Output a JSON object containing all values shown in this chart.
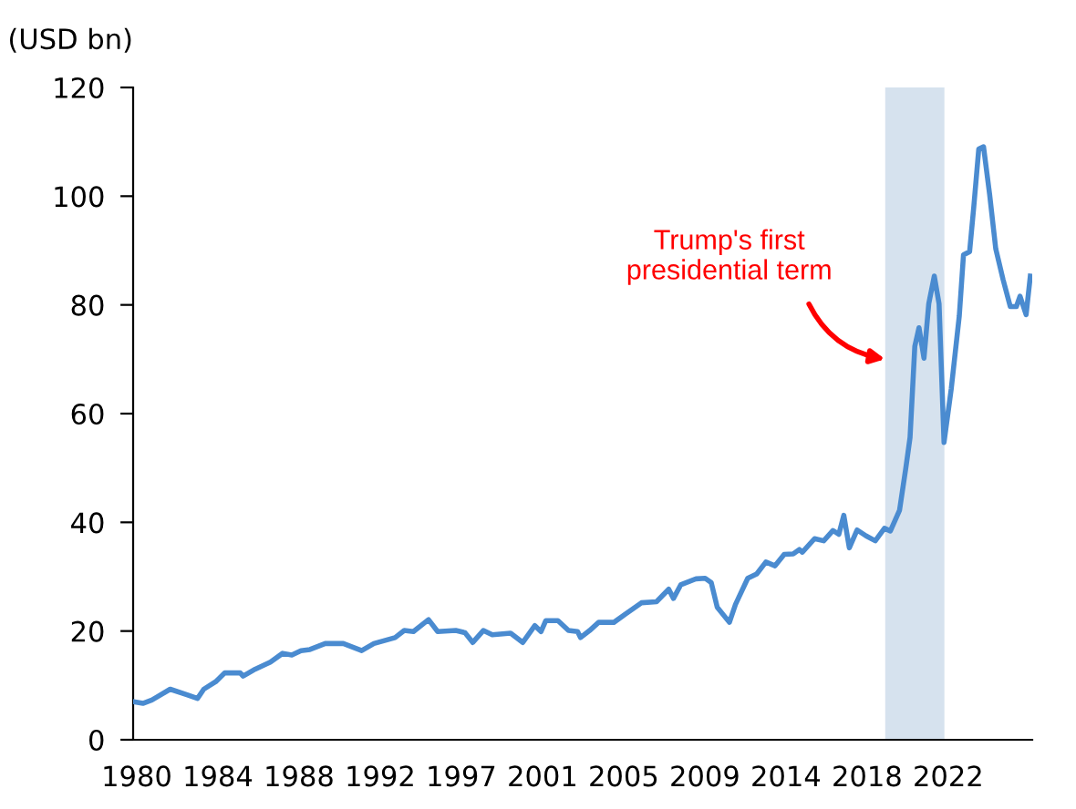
{
  "chart_data": {
    "type": "line",
    "ylabel": "(USD bn)",
    "x": [
      1979.54,
      1980.02,
      1980.49,
      1981.45,
      1982.4,
      1982.88,
      1983.21,
      1983.84,
      1984.31,
      1985.12,
      1985.27,
      1985.91,
      1986.7,
      1987.34,
      1987.82,
      1988.3,
      1988.77,
      1989.57,
      1990.52,
      1991.48,
      1992.12,
      1993.23,
      1993.71,
      1994.19,
      1994.98,
      1995.46,
      1996.41,
      1996.89,
      1997.3,
      1997.85,
      1998.32,
      1999.28,
      1999.92,
      2000.55,
      2000.87,
      2001.12,
      2001.76,
      2002.31,
      2002.79,
      2002.94,
      2003.42,
      2003.89,
      2004.69,
      2005.33,
      2006.13,
      2006.92,
      2007.56,
      2007.81,
      2008.19,
      2008.99,
      2009.47,
      2009.79,
      2010.1,
      2010.74,
      2011.06,
      2011.7,
      2012.17,
      2012.65,
      2013.13,
      2013.61,
      2014.08,
      2014.4,
      2014.56,
      2015.2,
      2015.68,
      2016.16,
      2016.47,
      2016.73,
      2017.02,
      2017.43,
      2017.9,
      2018.38,
      2018.86,
      2019.17,
      2019.65,
      2019.98,
      2020.2,
      2020.45,
      2020.67,
      2020.93,
      2021.18,
      2021.47,
      2021.72,
      2021.98,
      2022.36,
      2022.78,
      2023.0,
      2023.32,
      2023.54,
      2023.8,
      2024.05,
      2024.37,
      2024.69,
      2025.07,
      2025.45,
      2025.77,
      2025.96,
      2026.28,
      2026.5
    ],
    "series": [
      {
        "color": "#4a8bd0",
        "values": [
          7.0,
          6.7,
          7.3,
          9.3,
          8.2,
          7.6,
          9.3,
          10.7,
          12.3,
          12.3,
          11.7,
          13.0,
          14.3,
          15.9,
          15.6,
          16.4,
          16.6,
          17.7,
          17.7,
          16.4,
          17.7,
          18.8,
          20.1,
          19.9,
          22.1,
          19.9,
          20.1,
          19.7,
          17.9,
          20.1,
          19.3,
          19.6,
          17.9,
          21.0,
          19.9,
          21.9,
          21.9,
          20.1,
          19.9,
          18.8,
          20.1,
          21.6,
          21.6,
          23.2,
          25.2,
          25.4,
          27.7,
          26.0,
          28.5,
          29.6,
          29.7,
          28.9,
          24.4,
          21.6,
          24.9,
          29.7,
          30.5,
          32.7,
          32.0,
          34.1,
          34.2,
          35.0,
          34.5,
          37.0,
          36.6,
          38.5,
          37.8,
          41.3,
          35.3,
          38.6,
          37.5,
          36.6,
          38.9,
          38.4,
          42.2,
          50.0,
          55.6,
          72.4,
          75.8,
          70.2,
          80.2,
          85.3,
          80.2,
          54.7,
          64.6,
          78.0,
          89.2,
          89.8,
          98.1,
          108.7,
          109.1,
          100.3,
          90.3,
          84.7,
          79.7,
          79.7,
          81.6,
          78.2,
          85.3
        ]
      }
    ],
    "xlim": [
      1979.51,
      2026.6
    ],
    "xticks": [
      {
        "value": 1979.7,
        "label": "1980"
      },
      {
        "value": 1983.95,
        "label": "1984"
      },
      {
        "value": 1988.2,
        "label": "1988"
      },
      {
        "value": 1992.45,
        "label": "1992"
      },
      {
        "value": 1996.7,
        "label": "1997"
      },
      {
        "value": 2000.95,
        "label": "2001"
      },
      {
        "value": 2005.2,
        "label": "2005"
      },
      {
        "value": 2009.45,
        "label": "2009"
      },
      {
        "value": 2013.7,
        "label": "2014"
      },
      {
        "value": 2017.95,
        "label": "2018"
      },
      {
        "value": 2022.2,
        "label": "2022"
      }
    ],
    "ylim": [
      0,
      120
    ],
    "yticks": [
      0,
      20,
      40,
      60,
      80,
      100,
      120
    ],
    "bands": [
      {
        "axis": "x",
        "from": 2018.9,
        "to": 2022.0,
        "color": "#d6e2ee"
      }
    ],
    "annotations": [
      {
        "text": "Trump's first\npresidential term",
        "x": 2018.9,
        "y": 70
      }
    ],
    "grid": false,
    "legend": false,
    "line_style": "solid",
    "marker": "none"
  }
}
